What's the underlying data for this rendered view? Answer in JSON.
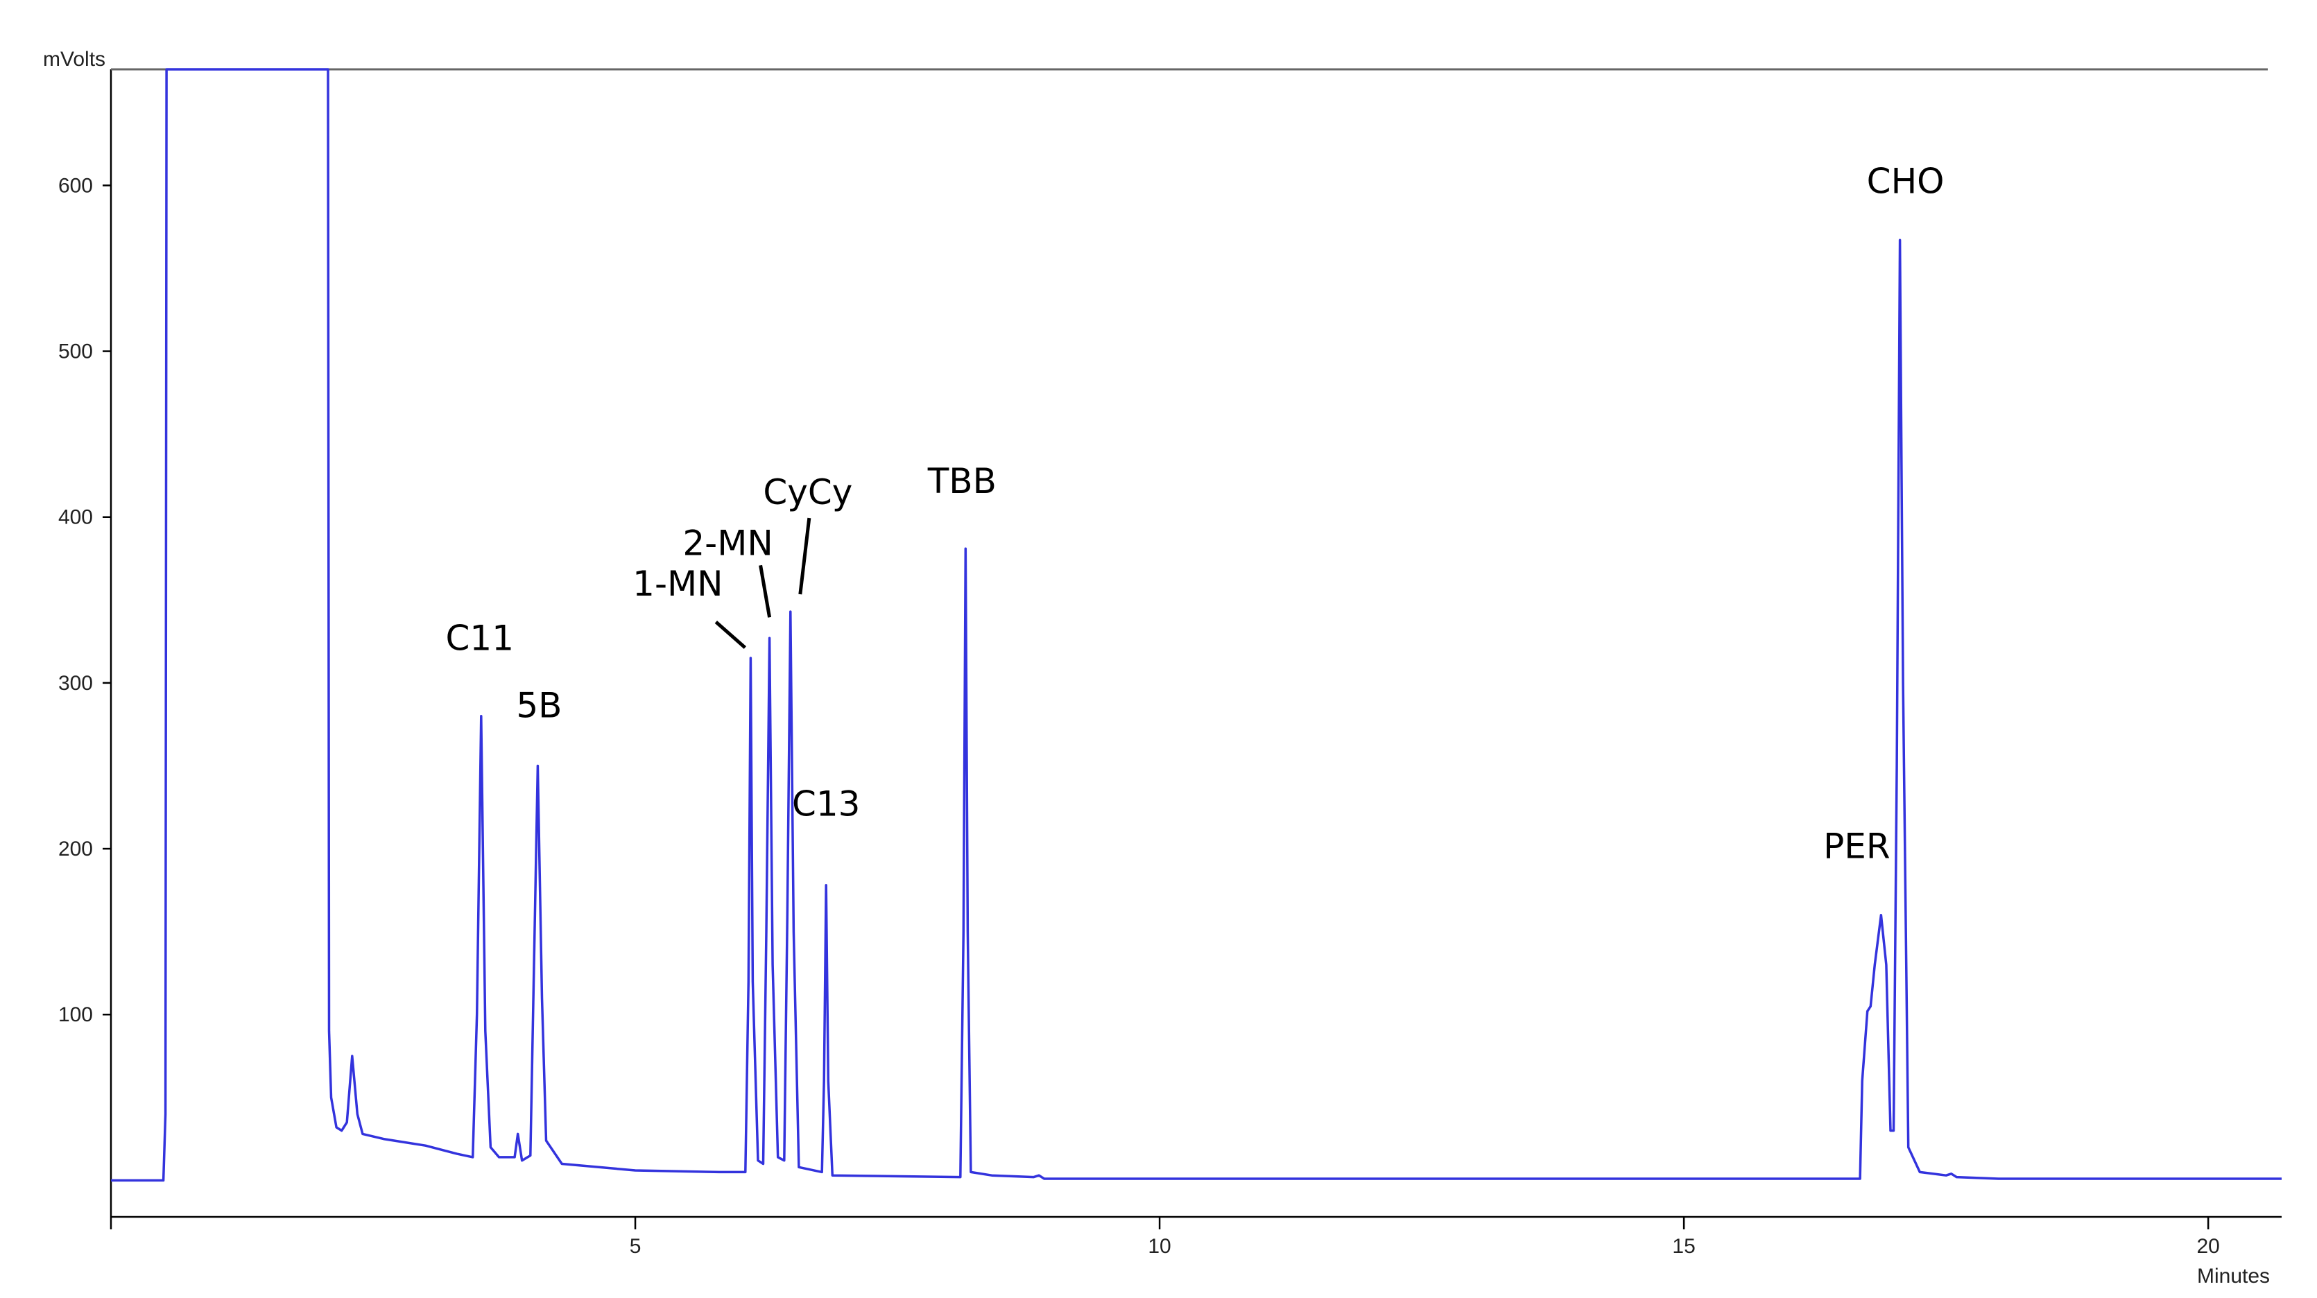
{
  "chart_data": {
    "type": "line",
    "ylabel": "mVolts",
    "xlabel": "Minutes",
    "xlim": [
      0,
      20.7
    ],
    "ylim": [
      -22,
      670
    ],
    "x_ticks": [
      {
        "value": 5,
        "label": "5"
      },
      {
        "value": 10,
        "label": "10"
      },
      {
        "value": 15,
        "label": "15"
      },
      {
        "value": 20,
        "label": "20"
      }
    ],
    "y_ticks": [
      {
        "value": 100,
        "label": "100"
      },
      {
        "value": 200,
        "label": "200"
      },
      {
        "value": 300,
        "label": "300"
      },
      {
        "value": 400,
        "label": "400"
      },
      {
        "value": 500,
        "label": "500"
      },
      {
        "value": 600,
        "label": "600"
      }
    ],
    "grid": false,
    "series_color": "#3333dd",
    "series": [
      {
        "points": [
          [
            0.0,
            0
          ],
          [
            0.5,
            0
          ],
          [
            0.52,
            40
          ],
          [
            0.53,
            670
          ],
          [
            2.07,
            670
          ],
          [
            2.08,
            90
          ],
          [
            2.1,
            50
          ],
          [
            2.15,
            32
          ],
          [
            2.2,
            30
          ],
          [
            2.25,
            35
          ],
          [
            2.3,
            75
          ],
          [
            2.35,
            40
          ],
          [
            2.4,
            28
          ],
          [
            2.6,
            25
          ],
          [
            3.0,
            21
          ],
          [
            3.3,
            16
          ],
          [
            3.45,
            14
          ],
          [
            3.49,
            100
          ],
          [
            3.53,
            280
          ],
          [
            3.57,
            90
          ],
          [
            3.62,
            20
          ],
          [
            3.7,
            14
          ],
          [
            3.85,
            14
          ],
          [
            3.88,
            28
          ],
          [
            3.92,
            12
          ],
          [
            4.0,
            15
          ],
          [
            4.04,
            150
          ],
          [
            4.07,
            250
          ],
          [
            4.11,
            110
          ],
          [
            4.15,
            24
          ],
          [
            4.3,
            10
          ],
          [
            5.0,
            6
          ],
          [
            5.8,
            5
          ],
          [
            6.05,
            5
          ],
          [
            6.08,
            120
          ],
          [
            6.1,
            315
          ],
          [
            6.12,
            120
          ],
          [
            6.17,
            12
          ],
          [
            6.22,
            10
          ],
          [
            6.25,
            150
          ],
          [
            6.28,
            327
          ],
          [
            6.31,
            130
          ],
          [
            6.36,
            14
          ],
          [
            6.42,
            12
          ],
          [
            6.45,
            160
          ],
          [
            6.48,
            343
          ],
          [
            6.51,
            150
          ],
          [
            6.56,
            8
          ],
          [
            6.78,
            5
          ],
          [
            6.8,
            60
          ],
          [
            6.82,
            178
          ],
          [
            6.84,
            60
          ],
          [
            6.88,
            3
          ],
          [
            8.1,
            2
          ],
          [
            8.13,
            150
          ],
          [
            8.15,
            381
          ],
          [
            8.17,
            150
          ],
          [
            8.2,
            5
          ],
          [
            8.4,
            3
          ],
          [
            8.8,
            2
          ],
          [
            8.85,
            3
          ],
          [
            8.9,
            1
          ],
          [
            10.0,
            1
          ],
          [
            14.0,
            1
          ],
          [
            16.68,
            1
          ],
          [
            16.7,
            60
          ],
          [
            16.75,
            102
          ],
          [
            16.78,
            105
          ],
          [
            16.82,
            130
          ],
          [
            16.88,
            160
          ],
          [
            16.93,
            130
          ],
          [
            16.97,
            30
          ],
          [
            17.0,
            30
          ],
          [
            17.03,
            250
          ],
          [
            17.06,
            567
          ],
          [
            17.09,
            300
          ],
          [
            17.14,
            20
          ],
          [
            17.25,
            5
          ],
          [
            17.5,
            3
          ],
          [
            17.55,
            4
          ],
          [
            17.6,
            2
          ],
          [
            18.0,
            1
          ],
          [
            20.7,
            1
          ]
        ]
      }
    ],
    "annotations": [
      {
        "text": "C11",
        "x": 3.53,
        "y": 280
      },
      {
        "text": "5B",
        "x": 4.07,
        "y": 250
      },
      {
        "text": "1-MN",
        "x": 6.1,
        "y": 315
      },
      {
        "text": "2-MN",
        "x": 6.28,
        "y": 327
      },
      {
        "text": "CyCy",
        "x": 6.48,
        "y": 343
      },
      {
        "text": "C13",
        "x": 6.82,
        "y": 178
      },
      {
        "text": "TBB",
        "x": 8.15,
        "y": 381
      },
      {
        "text": "PER",
        "x": 16.88,
        "y": 160
      },
      {
        "text": "CHO",
        "x": 17.06,
        "y": 567
      }
    ]
  }
}
